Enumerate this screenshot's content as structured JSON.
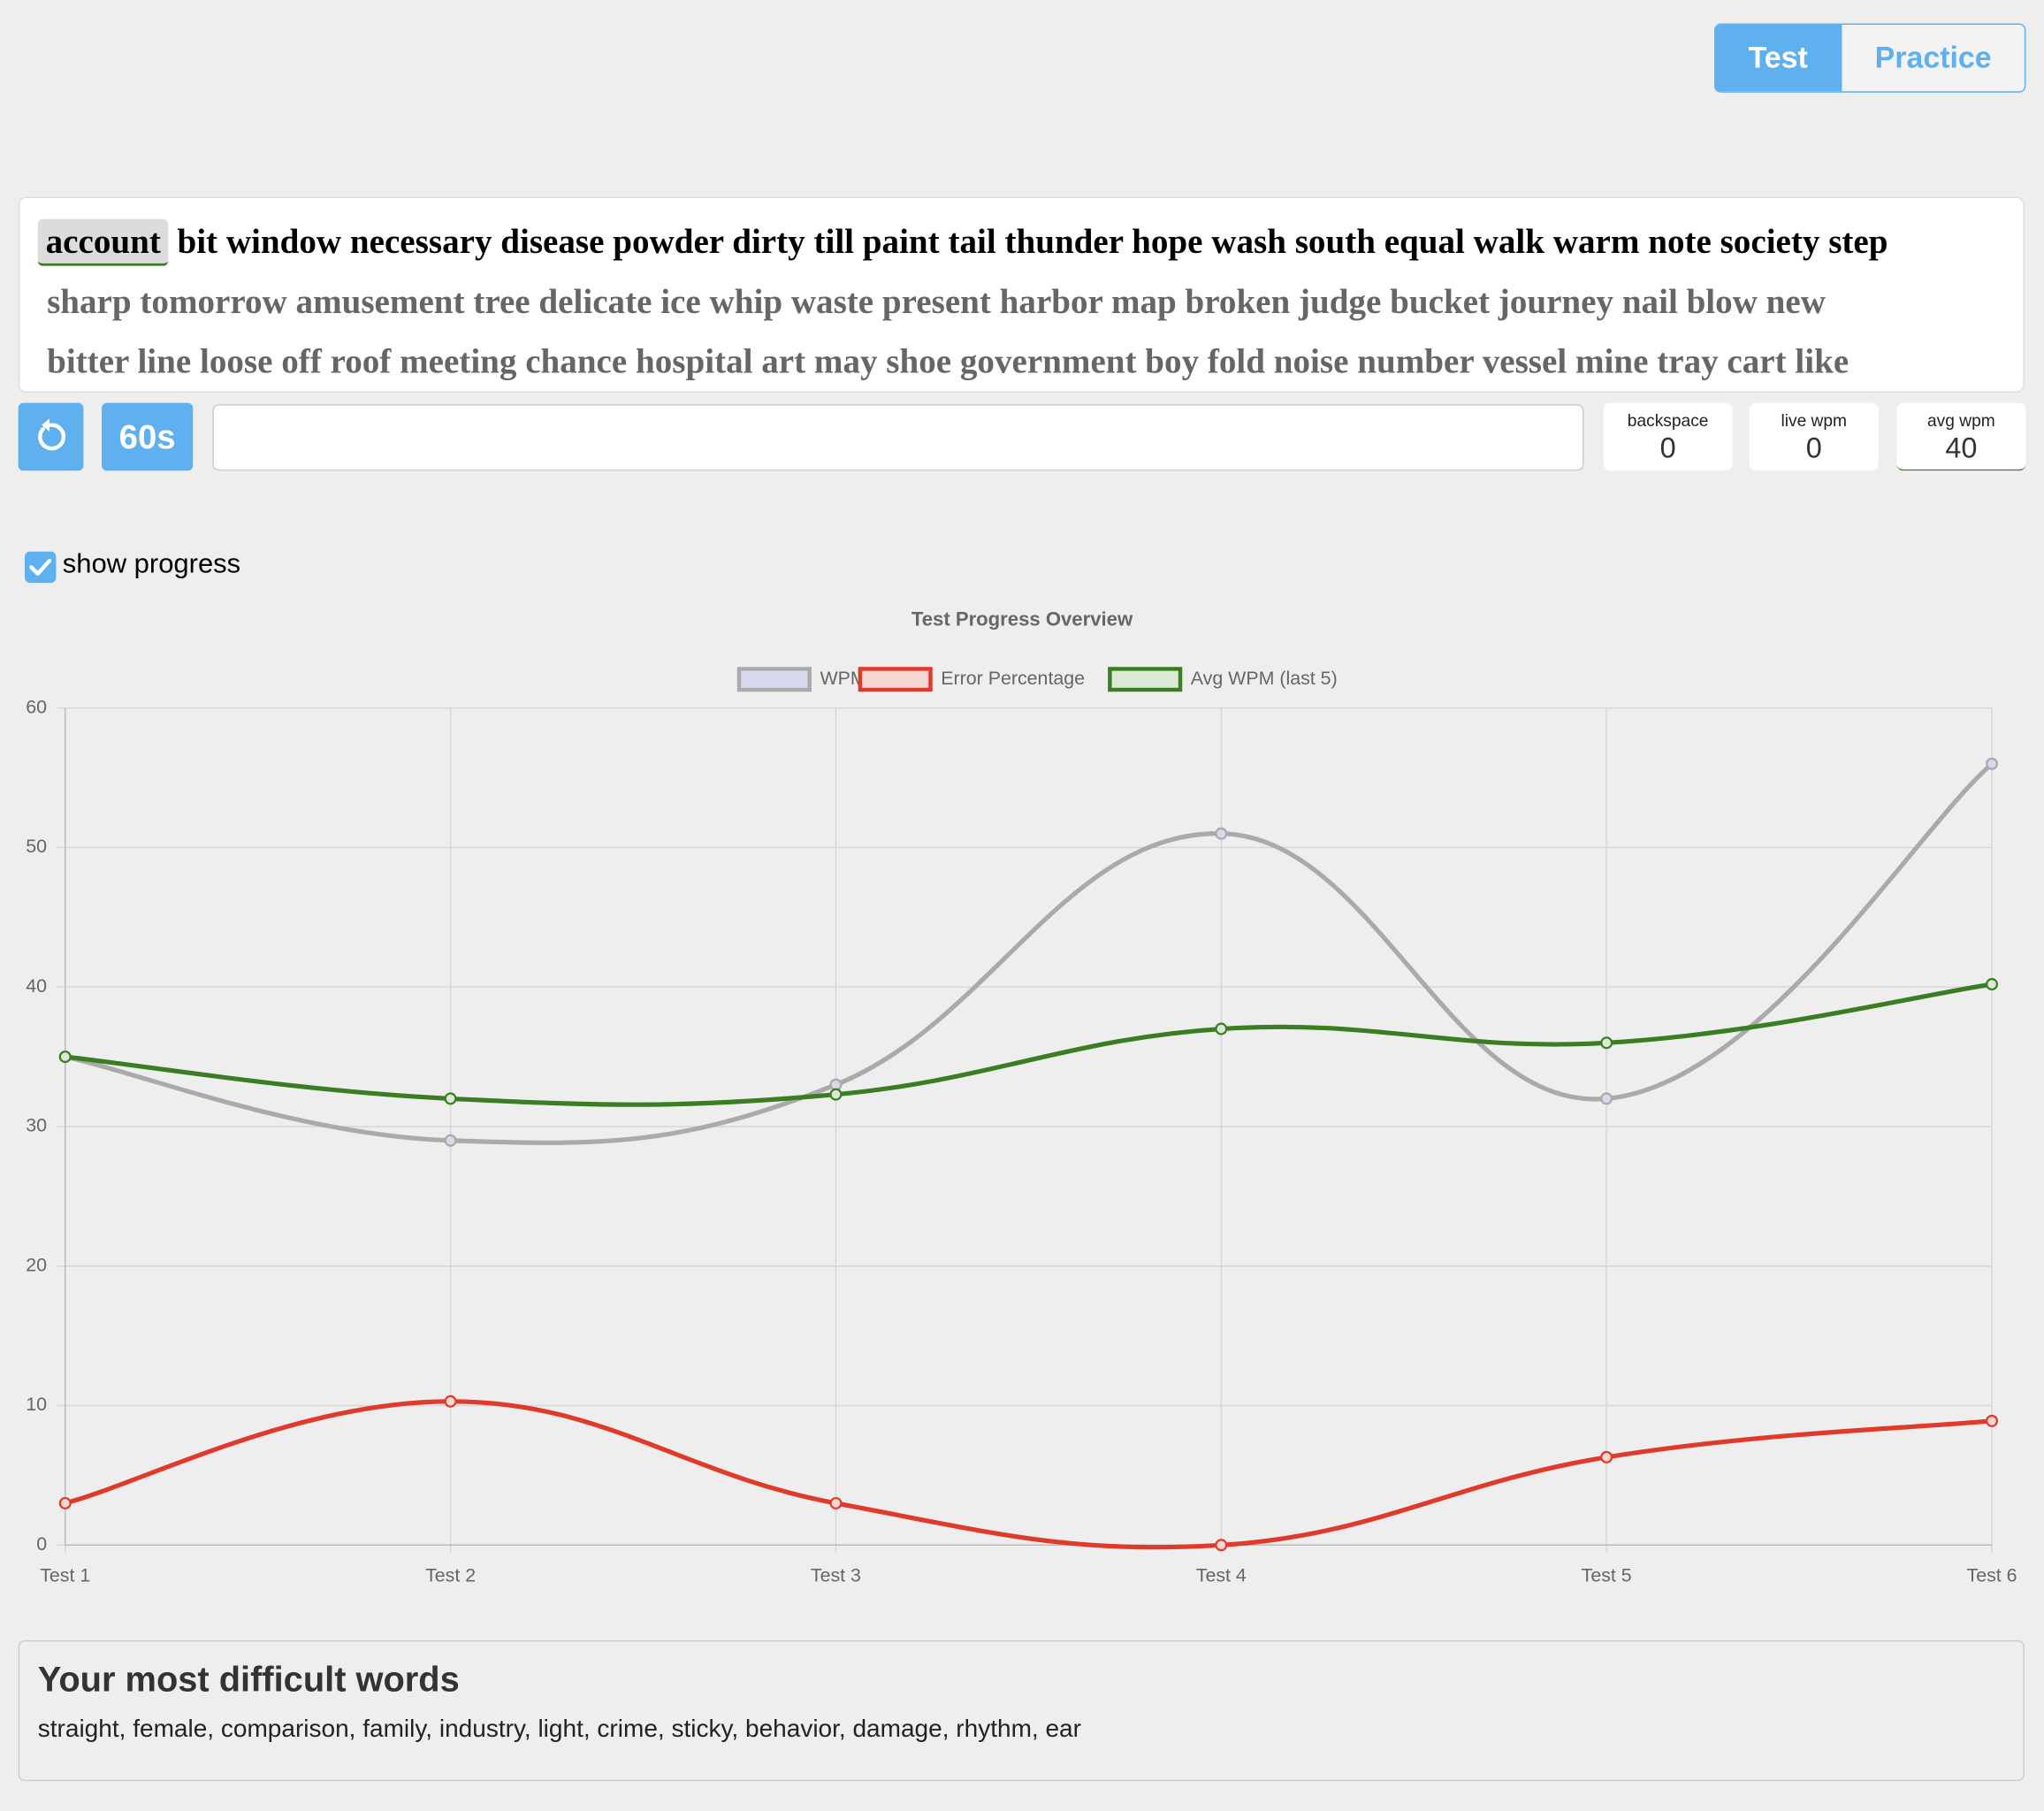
{
  "mode_toggle": {
    "options": [
      "Test",
      "Practice"
    ]
  },
  "words": {
    "current": "account",
    "line1": "bit window necessary disease powder dirty till paint tail thunder hope wash south equal walk warm note society step",
    "line2": "sharp tomorrow amusement tree delicate ice whip waste present harbor map broken judge bucket journey nail blow new",
    "line3": "bitter line loose off roof meeting chance hospital art may shoe government boy fold noise number vessel mine tray cart like"
  },
  "timer": "60s",
  "stats": [
    {
      "label": "backspace",
      "value": 0
    },
    {
      "label": "live wpm",
      "value": 0
    },
    {
      "label": "avg wpm",
      "value": 40
    }
  ],
  "show_progress": "show progress",
  "chart_data": {
    "type": "line",
    "title": "Test Progress Overview",
    "categories": [
      "Test 1",
      "Test 2",
      "Test 3",
      "Test 4",
      "Test 5",
      "Test 6"
    ],
    "series": [
      {
        "name": "WPM",
        "color": "#aaaaaa",
        "fill": "#d8d8ee",
        "values": [
          35,
          29,
          33,
          51,
          32,
          56
        ]
      },
      {
        "name": "Error Percentage",
        "color": "#e03a2a",
        "fill": "#f5d8d3",
        "values": [
          3,
          10.3,
          3,
          0,
          6.3,
          8.9
        ]
      },
      {
        "name": "Avg WPM (last 5)",
        "color": "#3a7d22",
        "fill": "#dbe9d5",
        "values": [
          35,
          32,
          32.3,
          37,
          36,
          40.2
        ]
      }
    ],
    "ylim": [
      0,
      60
    ],
    "yticks": [
      0,
      10,
      20,
      30,
      40,
      50,
      60
    ],
    "grid": true
  },
  "difficult_words": {
    "title": "Your most difficult words",
    "text": "straight, female, comparison, family, industry, light, crime, sticky, behavior, damage, rhythm, ear"
  }
}
